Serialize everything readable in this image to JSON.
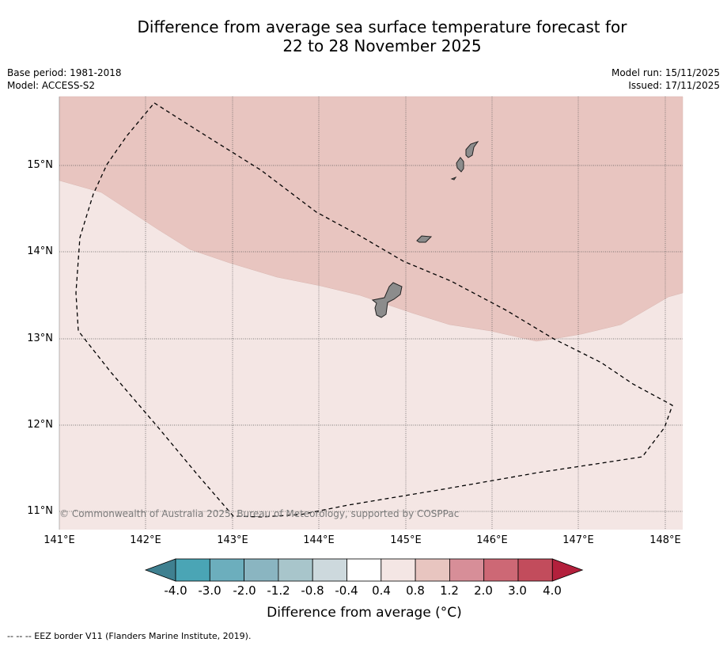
{
  "title_line1": "Difference from average sea surface temperature forecast for",
  "title_line2": "22 to 28 November 2025",
  "meta": {
    "base_period": "Base period: 1981-2018",
    "model": "Model: ACCESS-S2",
    "model_run": "Model run: 15/11/2025",
    "issued": "Issued: 17/11/2025"
  },
  "map": {
    "lat_labels": [
      "15°N",
      "14°N",
      "13°N",
      "12°N",
      "11°N"
    ],
    "lon_labels": [
      "141°E",
      "142°E",
      "143°E",
      "144°E",
      "145°E",
      "146°E",
      "147°E",
      "148°E"
    ],
    "copyright": "© Commonwealth of Australia 2025, Bureau of Meteorology, supported by COSPPac",
    "regions": [
      {
        "name": "anomaly 0.8 to 1.2",
        "color": "#e8c5c0"
      },
      {
        "name": "anomaly 0.4 to 0.8",
        "color": "#f4e6e4"
      }
    ],
    "land_color": "#8c8c8c"
  },
  "colorbar": {
    "labels": [
      "-4.0",
      "-3.0",
      "-2.0",
      "-1.2",
      "-0.8",
      "-0.4",
      "0.4",
      "0.8",
      "1.2",
      "2.0",
      "3.0",
      "4.0"
    ],
    "colors": [
      "#3f8090",
      "#4aa5b5",
      "#6caebd",
      "#8ab5c1",
      "#a8c5cb",
      "#cdd9dd",
      "#ffffff",
      "#f4e6e4",
      "#e8c5c0",
      "#d78e98",
      "#cd6875",
      "#c24c5c",
      "#b3203c"
    ],
    "title": "Difference from average (°C)"
  },
  "footnote": "--  --  -- EEZ border V11 (Flanders Marine Institute, 2019)."
}
